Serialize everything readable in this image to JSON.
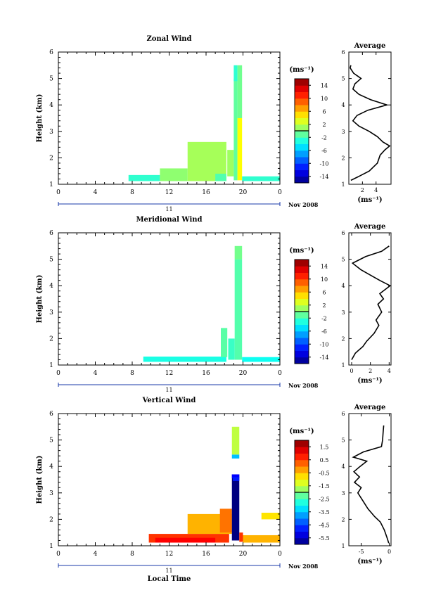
{
  "chart_data": [
    {
      "type": "heatmap",
      "title": "Zonal Wind",
      "ylabel": "Height (km)",
      "ylim": [
        1,
        6
      ],
      "xlim": [
        0,
        24
      ],
      "xticks": [
        "0",
        "4",
        "8",
        "12",
        "16",
        "20",
        "0"
      ],
      "ytick_labels": [
        "1",
        "2",
        "3",
        "4",
        "5",
        "6"
      ],
      "date_bar": {
        "day": "11",
        "month_year": "Nov 2008"
      },
      "colorbar": {
        "unit": "(ms⁻¹)",
        "min": -16,
        "max": 16,
        "tick_labels": [
          "14",
          "10",
          "6",
          "2",
          "-2",
          "-6",
          "-10",
          "-14"
        ]
      },
      "blocks": [
        {
          "t0": 7.6,
          "t1": 11.0,
          "h0": 1.12,
          "h1": 1.35,
          "value": -2.5
        },
        {
          "t0": 11.0,
          "t1": 14.0,
          "h0": 1.12,
          "h1": 1.6,
          "value": 0.5
        },
        {
          "t0": 14.0,
          "t1": 18.2,
          "h0": 1.12,
          "h1": 2.6,
          "value": 1.2
        },
        {
          "t0": 17.0,
          "t1": 18.2,
          "h0": 1.12,
          "h1": 1.4,
          "value": -1.5
        },
        {
          "t0": 18.3,
          "t1": 19.0,
          "h0": 1.3,
          "h1": 2.3,
          "value": 1.0
        },
        {
          "t0": 19.0,
          "t1": 19.4,
          "h0": 1.15,
          "h1": 5.0,
          "value": -1.0
        },
        {
          "t0": 19.0,
          "t1": 19.4,
          "h0": 4.9,
          "h1": 5.5,
          "value": -2.6
        },
        {
          "t0": 19.4,
          "t1": 19.9,
          "h0": 1.15,
          "h1": 3.5,
          "value": 4.0
        },
        {
          "t0": 19.4,
          "t1": 19.9,
          "h0": 3.5,
          "h1": 5.5,
          "value": -0.5
        },
        {
          "t0": 19.9,
          "t1": 24.0,
          "h0": 1.12,
          "h1": 1.3,
          "value": -2.5
        }
      ],
      "average": {
        "title": "Average",
        "xlabel": "(ms⁻¹)",
        "xlim": [
          0,
          6.2
        ],
        "xticks": [
          2,
          4
        ],
        "ylim": [
          1,
          6
        ],
        "profile": [
          {
            "h": 1.15,
            "v": 0.3
          },
          {
            "h": 1.3,
            "v": 1.5
          },
          {
            "h": 1.5,
            "v": 3.0
          },
          {
            "h": 1.8,
            "v": 4.2
          },
          {
            "h": 2.1,
            "v": 4.6
          },
          {
            "h": 2.3,
            "v": 5.3
          },
          {
            "h": 2.45,
            "v": 6.0
          },
          {
            "h": 2.6,
            "v": 5.0
          },
          {
            "h": 2.8,
            "v": 4.2
          },
          {
            "h": 3.0,
            "v": 3.0
          },
          {
            "h": 3.2,
            "v": 1.5
          },
          {
            "h": 3.4,
            "v": 0.6
          },
          {
            "h": 3.6,
            "v": 1.2
          },
          {
            "h": 3.8,
            "v": 2.8
          },
          {
            "h": 4.0,
            "v": 5.6
          },
          {
            "h": 4.2,
            "v": 3.2
          },
          {
            "h": 4.4,
            "v": 1.5
          },
          {
            "h": 4.6,
            "v": 0.6
          },
          {
            "h": 4.8,
            "v": 0.9
          },
          {
            "h": 5.0,
            "v": 1.8
          },
          {
            "h": 5.2,
            "v": 0.7
          },
          {
            "h": 5.4,
            "v": 0.2
          },
          {
            "h": 5.5,
            "v": 0.3
          }
        ]
      }
    },
    {
      "type": "heatmap",
      "title": "Meridional Wind",
      "ylabel": "Height (km)",
      "ylim": [
        1,
        6
      ],
      "xlim": [
        0,
        24
      ],
      "xticks": [
        "0",
        "4",
        "8",
        "12",
        "16",
        "20",
        "0"
      ],
      "ytick_labels": [
        "1",
        "2",
        "3",
        "4",
        "5",
        "6"
      ],
      "date_bar": {
        "day": "11",
        "month_year": "Nov 2008"
      },
      "colorbar": {
        "unit": "(ms⁻¹)",
        "min": -16,
        "max": 16,
        "tick_labels": [
          "14",
          "10",
          "6",
          "2",
          "-2",
          "-6",
          "-10",
          "-14"
        ]
      },
      "blocks": [
        {
          "t0": 9.2,
          "t1": 18.2,
          "h0": 1.12,
          "h1": 1.32,
          "value": -3.2
        },
        {
          "t0": 17.6,
          "t1": 18.3,
          "h0": 1.3,
          "h1": 2.4,
          "value": -1.2
        },
        {
          "t0": 18.4,
          "t1": 19.1,
          "h0": 1.2,
          "h1": 2.0,
          "value": -2.2
        },
        {
          "t0": 19.1,
          "t1": 19.9,
          "h0": 1.2,
          "h1": 5.0,
          "value": -1.4
        },
        {
          "t0": 19.1,
          "t1": 19.9,
          "h0": 5.0,
          "h1": 5.5,
          "value": -0.4
        },
        {
          "t0": 19.9,
          "t1": 24.0,
          "h0": 1.12,
          "h1": 1.3,
          "value": -3.6
        }
      ],
      "average": {
        "title": "Average",
        "xlabel": "(ms⁻¹)",
        "xlim": [
          -0.3,
          4.2
        ],
        "xticks": [
          0,
          2,
          4
        ],
        "ylim": [
          1,
          6
        ],
        "profile": [
          {
            "h": 1.2,
            "v": 0.0
          },
          {
            "h": 1.45,
            "v": 0.4
          },
          {
            "h": 1.7,
            "v": 1.2
          },
          {
            "h": 1.9,
            "v": 1.6
          },
          {
            "h": 2.2,
            "v": 2.4
          },
          {
            "h": 2.5,
            "v": 2.9
          },
          {
            "h": 2.7,
            "v": 2.6
          },
          {
            "h": 3.0,
            "v": 3.2
          },
          {
            "h": 3.3,
            "v": 2.8
          },
          {
            "h": 3.5,
            "v": 3.4
          },
          {
            "h": 3.7,
            "v": 3.0
          },
          {
            "h": 4.0,
            "v": 4.1
          },
          {
            "h": 4.2,
            "v": 3.0
          },
          {
            "h": 4.4,
            "v": 2.0
          },
          {
            "h": 4.6,
            "v": 1.0
          },
          {
            "h": 4.85,
            "v": 0.1
          },
          {
            "h": 5.1,
            "v": 1.5
          },
          {
            "h": 5.3,
            "v": 3.2
          },
          {
            "h": 5.5,
            "v": 4.0
          }
        ]
      }
    },
    {
      "type": "heatmap",
      "title": "Vertical Wind",
      "ylabel": "Height (km)",
      "xlabel": "Local Time",
      "ylim": [
        1,
        6
      ],
      "xlim": [
        0,
        24
      ],
      "xticks": [
        "0",
        "4",
        "8",
        "12",
        "16",
        "20",
        "0"
      ],
      "ytick_labels": [
        "1",
        "2",
        "3",
        "4",
        "5",
        "6"
      ],
      "date_bar": {
        "day": "11",
        "month_year": "Nov 2008"
      },
      "colorbar": {
        "unit": "(ms⁻¹)",
        "min": -6.0,
        "max": 2.0,
        "tick_labels": [
          "1.5",
          "0.5",
          "-0.5",
          "-1.5",
          "-2.5",
          "-3.5",
          "-4.5",
          "-5.5"
        ]
      },
      "blocks": [
        {
          "t0": 9.8,
          "t1": 18.5,
          "h0": 1.12,
          "h1": 1.45,
          "value": 0.6
        },
        {
          "t0": 10.5,
          "t1": 17.0,
          "h0": 1.12,
          "h1": 1.3,
          "value": 1.0
        },
        {
          "t0": 14.0,
          "t1": 18.8,
          "h0": 1.45,
          "h1": 2.2,
          "value": -0.4
        },
        {
          "t0": 17.5,
          "t1": 18.8,
          "h0": 1.5,
          "h1": 2.4,
          "value": 0.1
        },
        {
          "t0": 18.8,
          "t1": 19.6,
          "h0": 1.2,
          "h1": 3.7,
          "value": -6.0
        },
        {
          "t0": 18.8,
          "t1": 19.6,
          "h0": 3.55,
          "h1": 3.7,
          "value": -5.0
        },
        {
          "t0": 18.9,
          "t1": 19.6,
          "h0": 3.45,
          "h1": 3.6,
          "value": -4.8
        },
        {
          "t0": 18.8,
          "t1": 19.6,
          "h0": 4.3,
          "h1": 4.45,
          "value": -3.5
        },
        {
          "t0": 18.8,
          "t1": 19.6,
          "h0": 4.45,
          "h1": 5.5,
          "value": -1.5
        },
        {
          "t0": 19.6,
          "t1": 20.0,
          "h0": 1.15,
          "h1": 1.5,
          "value": 0.6
        },
        {
          "t0": 20.0,
          "t1": 24.0,
          "h0": 1.12,
          "h1": 1.4,
          "value": -0.4
        },
        {
          "t0": 22.0,
          "t1": 24.0,
          "h0": 2.0,
          "h1": 2.25,
          "value": -0.8
        }
      ],
      "average": {
        "title": "Average",
        "xlabel": "(ms⁻¹)",
        "xlim": [
          -7.2,
          0.3
        ],
        "xticks": [
          -5,
          0
        ],
        "ylim": [
          1,
          6
        ],
        "profile": [
          {
            "h": 1.1,
            "v": -0.1
          },
          {
            "h": 1.3,
            "v": -0.4
          },
          {
            "h": 1.6,
            "v": -0.9
          },
          {
            "h": 1.9,
            "v": -1.6
          },
          {
            "h": 2.1,
            "v": -2.6
          },
          {
            "h": 2.4,
            "v": -3.8
          },
          {
            "h": 2.7,
            "v": -4.7
          },
          {
            "h": 3.0,
            "v": -5.6
          },
          {
            "h": 3.2,
            "v": -5.0
          },
          {
            "h": 3.4,
            "v": -6.2
          },
          {
            "h": 3.6,
            "v": -5.3
          },
          {
            "h": 3.8,
            "v": -6.3
          },
          {
            "h": 4.0,
            "v": -5.2
          },
          {
            "h": 4.2,
            "v": -4.0
          },
          {
            "h": 4.35,
            "v": -6.4
          },
          {
            "h": 4.55,
            "v": -4.6
          },
          {
            "h": 4.75,
            "v": -1.4
          },
          {
            "h": 5.0,
            "v": -1.2
          },
          {
            "h": 5.3,
            "v": -1.1
          },
          {
            "h": 5.55,
            "v": -1.0
          }
        ]
      }
    }
  ]
}
